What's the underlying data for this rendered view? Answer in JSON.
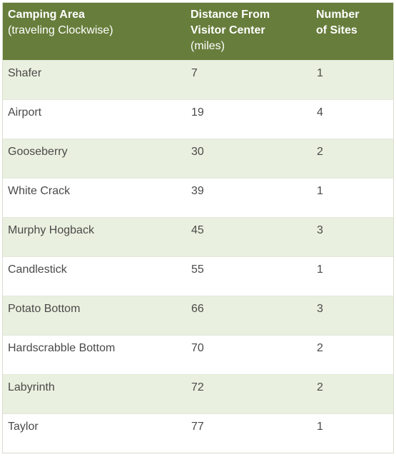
{
  "table": {
    "headers": {
      "area": {
        "line1": "Camping Area",
        "line2": "(traveling Clockwise)"
      },
      "distance": {
        "line1": "Distance From",
        "line2": "Visitor Center",
        "line3": "(miles)"
      },
      "sites": {
        "line1": "Number",
        "line2": "of Sites"
      }
    },
    "rows": [
      {
        "area": "Shafer",
        "distance": "7",
        "sites": "1"
      },
      {
        "area": "Airport",
        "distance": "19",
        "sites": "4"
      },
      {
        "area": "Gooseberry",
        "distance": "30",
        "sites": "2"
      },
      {
        "area": "White Crack",
        "distance": "39",
        "sites": "1"
      },
      {
        "area": "Murphy Hogback",
        "distance": "45",
        "sites": "3"
      },
      {
        "area": "Candlestick",
        "distance": "55",
        "sites": "1"
      },
      {
        "area": "Potato Bottom",
        "distance": "66",
        "sites": "3"
      },
      {
        "area": "Hardscrabble Bottom",
        "distance": "70",
        "sites": "2"
      },
      {
        "area": "Labyrinth",
        "distance": "72",
        "sites": "2"
      },
      {
        "area": "Taylor",
        "distance": "77",
        "sites": "1"
      }
    ],
    "colors": {
      "header_bg": "#677d3b",
      "row_alt_bg": "#eaf0df",
      "row_bg": "#ffffff",
      "header_text": "#ffffff",
      "body_text": "#4a4a4a"
    }
  }
}
